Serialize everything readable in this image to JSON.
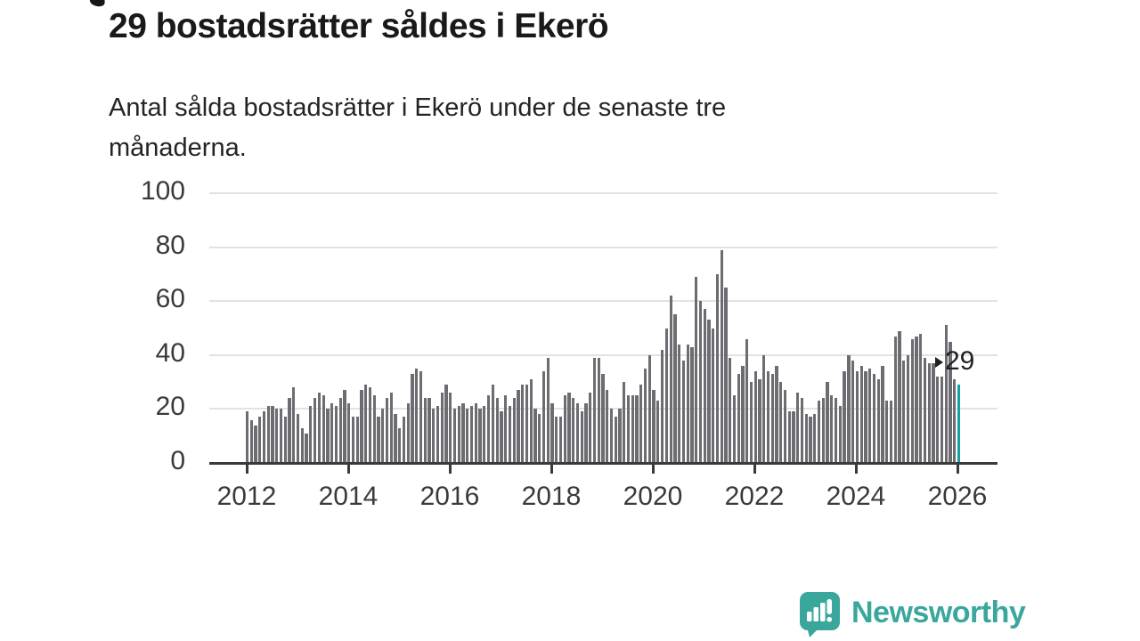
{
  "header": {
    "title": "29 bostadsrätter såldes i Ekerö",
    "subtitle_line1": "Antal sålda bostadsrätter i Ekerö under de senaste tre",
    "subtitle_line2": "månaderna."
  },
  "annotation": {
    "value_label": "29"
  },
  "footer": {
    "brand": "Newsworthy",
    "brand_color": "#3aa79d",
    "logo_icon": "newsworthy-speech-bubble-bar-chart-icon"
  },
  "chart_data": {
    "type": "bar",
    "title": "29 bostadsrätter såldes i Ekerö",
    "subtitle": "Antal sålda bostadsrätter i Ekerö under de senaste tre månaderna.",
    "frequency": "monthly",
    "x_start": "2012-01",
    "x_end": "2026-01",
    "x_ticks": [
      2012,
      2014,
      2016,
      2018,
      2020,
      2022,
      2024,
      2026
    ],
    "y_ticks": [
      0,
      20,
      40,
      60,
      80,
      100
    ],
    "ylim": [
      0,
      100
    ],
    "grid": true,
    "legend": false,
    "bar_color": "#6c6c72",
    "highlight_color": "#12a3a0",
    "highlight_index_from_end": 1,
    "highlight_value": 29,
    "highlight_label": "29",
    "values": [
      19,
      16,
      14,
      17,
      19,
      21,
      21,
      20,
      20,
      17,
      24,
      28,
      18,
      13,
      11,
      21,
      24,
      26,
      25,
      20,
      22,
      21,
      24,
      27,
      22,
      17,
      17,
      27,
      29,
      28,
      25,
      17,
      20,
      24,
      26,
      18,
      13,
      17,
      22,
      33,
      35,
      34,
      24,
      24,
      20,
      21,
      26,
      29,
      26,
      20,
      21,
      22,
      20,
      21,
      22,
      20,
      21,
      25,
      29,
      24,
      19,
      25,
      21,
      24,
      27,
      29,
      29,
      31,
      20,
      18,
      34,
      39,
      22,
      17,
      17,
      25,
      26,
      24,
      22,
      19,
      22,
      26,
      39,
      39,
      33,
      27,
      20,
      17,
      20,
      30,
      25,
      25,
      25,
      29,
      35,
      40,
      27,
      23,
      42,
      50,
      62,
      55,
      44,
      38,
      44,
      43,
      69,
      60,
      57,
      53,
      50,
      70,
      79,
      65,
      39,
      25,
      33,
      36,
      46,
      30,
      34,
      31,
      40,
      34,
      33,
      36,
      30,
      27,
      19,
      19,
      26,
      24,
      18,
      17,
      18,
      23,
      24,
      30,
      25,
      24,
      21,
      34,
      40,
      38,
      34,
      36,
      34,
      35,
      33,
      31,
      36,
      23,
      23,
      47,
      49,
      38,
      40,
      46,
      47,
      48,
      39,
      37,
      37,
      32,
      32,
      51,
      45,
      31,
      29
    ]
  }
}
